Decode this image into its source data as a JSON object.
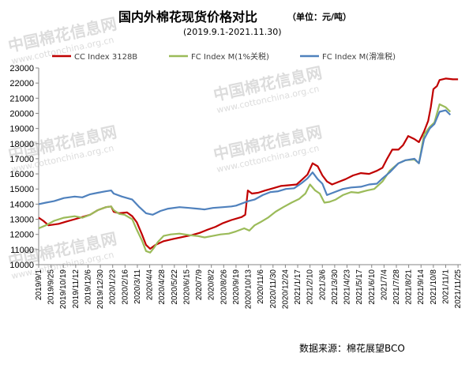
{
  "header": {
    "title": "国内外棉花现货价格对比",
    "unit": "（单位：元/吨）",
    "subtitle": "(2019.9.1-2021.11.30)"
  },
  "footer": {
    "source": "数据来源：棉花展望BCO"
  },
  "watermark": {
    "text": "中国棉花信息网",
    "url": "www.cottonchina.org.cn"
  },
  "chart_data": {
    "type": "line",
    "ylim": [
      10000,
      23000
    ],
    "yticks": [
      10000,
      11000,
      12000,
      13000,
      14000,
      15000,
      16000,
      17000,
      18000,
      19000,
      20000,
      21000,
      22000,
      23000
    ],
    "ytick_labels": [
      "10000",
      "11000",
      "12000",
      "13000",
      "14000",
      "15000",
      "16000",
      "17000",
      "18000",
      "19000",
      "20000",
      "21000",
      "22000",
      "23000"
    ],
    "xlim": [
      "2019-09-01",
      "2021-12-01"
    ],
    "xticks": [
      "2019/9/1",
      "2019/9/25",
      "2019/10/19",
      "2019/11/12",
      "2019/12/6",
      "2019/12/30",
      "2020/1/23",
      "2020/2/16",
      "2020/3/11",
      "2020/4/4",
      "2020/4/28",
      "2020/5/22",
      "2020/6/15",
      "2020/7/9",
      "2020/8/2",
      "2020/8/26",
      "2020/9/19",
      "2020/10/13",
      "2020/11/6",
      "2020/11/30",
      "2020/12/24",
      "2021/1/17",
      "2021/2/10",
      "2021/3/6",
      "2021/3/30",
      "2021/4/23",
      "2021/5/17",
      "2021/6/10",
      "2021/7/4",
      "2021/7/28",
      "2021/8/21",
      "2021/9/14",
      "2021/10/8",
      "2021/11/1",
      "2021/11/25"
    ],
    "legend_position": "top",
    "grid": false,
    "series": [
      {
        "name": "CC Index 3128B",
        "color": "#c00000",
        "points": [
          [
            "2019-09-01",
            13100
          ],
          [
            "2019-09-10",
            12900
          ],
          [
            "2019-09-20",
            12600
          ],
          [
            "2019-10-10",
            12700
          ],
          [
            "2019-10-25",
            12850
          ],
          [
            "2019-11-10",
            13000
          ],
          [
            "2019-11-25",
            13150
          ],
          [
            "2019-12-10",
            13300
          ],
          [
            "2019-12-25",
            13600
          ],
          [
            "2020-01-10",
            13800
          ],
          [
            "2020-01-20",
            13850
          ],
          [
            "2020-01-25",
            13500
          ],
          [
            "2020-02-05",
            13400
          ],
          [
            "2020-02-20",
            13450
          ],
          [
            "2020-03-01",
            13200
          ],
          [
            "2020-03-10",
            12800
          ],
          [
            "2020-03-20",
            12000
          ],
          [
            "2020-03-28",
            11300
          ],
          [
            "2020-04-05",
            11050
          ],
          [
            "2020-04-15",
            11300
          ],
          [
            "2020-05-01",
            11550
          ],
          [
            "2020-05-20",
            11700
          ],
          [
            "2020-06-10",
            11850
          ],
          [
            "2020-06-25",
            11950
          ],
          [
            "2020-07-10",
            12100
          ],
          [
            "2020-07-25",
            12300
          ],
          [
            "2020-08-10",
            12500
          ],
          [
            "2020-08-25",
            12750
          ],
          [
            "2020-09-10",
            12950
          ],
          [
            "2020-09-30",
            13150
          ],
          [
            "2020-10-07",
            13300
          ],
          [
            "2020-10-12",
            14900
          ],
          [
            "2020-10-20",
            14700
          ],
          [
            "2020-11-01",
            14750
          ],
          [
            "2020-11-15",
            14900
          ],
          [
            "2020-11-30",
            15050
          ],
          [
            "2020-12-15",
            15200
          ],
          [
            "2021-01-01",
            15250
          ],
          [
            "2021-01-15",
            15300
          ],
          [
            "2021-01-25",
            15600
          ],
          [
            "2021-02-05",
            15950
          ],
          [
            "2021-02-15",
            16700
          ],
          [
            "2021-02-25",
            16500
          ],
          [
            "2021-03-06",
            15900
          ],
          [
            "2021-03-15",
            15500
          ],
          [
            "2021-03-25",
            15300
          ],
          [
            "2021-04-05",
            15450
          ],
          [
            "2021-04-20",
            15650
          ],
          [
            "2021-05-05",
            15900
          ],
          [
            "2021-05-20",
            16050
          ],
          [
            "2021-06-05",
            16000
          ],
          [
            "2021-06-20",
            16200
          ],
          [
            "2021-07-01",
            16400
          ],
          [
            "2021-07-10",
            17000
          ],
          [
            "2021-07-20",
            17600
          ],
          [
            "2021-08-01",
            17600
          ],
          [
            "2021-08-10",
            17900
          ],
          [
            "2021-08-20",
            18500
          ],
          [
            "2021-09-01",
            18300
          ],
          [
            "2021-09-10",
            18100
          ],
          [
            "2021-09-20",
            18800
          ],
          [
            "2021-09-28",
            19500
          ],
          [
            "2021-10-03",
            20400
          ],
          [
            "2021-10-08",
            21600
          ],
          [
            "2021-10-15",
            21800
          ],
          [
            "2021-10-20",
            22200
          ],
          [
            "2021-11-01",
            22300
          ],
          [
            "2021-11-15",
            22250
          ],
          [
            "2021-11-25",
            22250
          ]
        ]
      },
      {
        "name": "FC Index M(1%关税)",
        "color": "#9bbb59",
        "points": [
          [
            "2019-09-01",
            12400
          ],
          [
            "2019-09-15",
            12600
          ],
          [
            "2019-10-01",
            12900
          ],
          [
            "2019-10-20",
            13100
          ],
          [
            "2019-11-10",
            13200
          ],
          [
            "2019-11-25",
            13100
          ],
          [
            "2019-12-10",
            13300
          ],
          [
            "2019-12-25",
            13600
          ],
          [
            "2020-01-10",
            13800
          ],
          [
            "2020-01-20",
            13850
          ],
          [
            "2020-01-25",
            13600
          ],
          [
            "2020-02-05",
            13350
          ],
          [
            "2020-02-15",
            13300
          ],
          [
            "2020-03-01",
            13000
          ],
          [
            "2020-03-10",
            12300
          ],
          [
            "2020-03-20",
            11600
          ],
          [
            "2020-03-28",
            10900
          ],
          [
            "2020-04-05",
            10800
          ],
          [
            "2020-04-12",
            11100
          ],
          [
            "2020-04-20",
            11500
          ],
          [
            "2020-05-01",
            11900
          ],
          [
            "2020-05-15",
            12000
          ],
          [
            "2020-06-01",
            12050
          ],
          [
            "2020-06-20",
            11950
          ],
          [
            "2020-07-05",
            11900
          ],
          [
            "2020-07-20",
            11800
          ],
          [
            "2020-08-05",
            11900
          ],
          [
            "2020-08-20",
            12000
          ],
          [
            "2020-09-05",
            12050
          ],
          [
            "2020-09-19",
            12200
          ],
          [
            "2020-10-05",
            12400
          ],
          [
            "2020-10-15",
            12250
          ],
          [
            "2020-10-25",
            12600
          ],
          [
            "2020-11-05",
            12800
          ],
          [
            "2020-11-20",
            13100
          ],
          [
            "2020-12-05",
            13500
          ],
          [
            "2020-12-20",
            13800
          ],
          [
            "2021-01-05",
            14100
          ],
          [
            "2021-01-20",
            14350
          ],
          [
            "2021-02-01",
            14700
          ],
          [
            "2021-02-10",
            15300
          ],
          [
            "2021-02-20",
            14900
          ],
          [
            "2021-03-01",
            14700
          ],
          [
            "2021-03-10",
            14100
          ],
          [
            "2021-03-20",
            14150
          ],
          [
            "2021-04-01",
            14300
          ],
          [
            "2021-04-15",
            14600
          ],
          [
            "2021-05-01",
            14800
          ],
          [
            "2021-05-15",
            14750
          ],
          [
            "2021-06-01",
            14900
          ],
          [
            "2021-06-15",
            15000
          ],
          [
            "2021-07-01",
            15500
          ],
          [
            "2021-07-15",
            16200
          ],
          [
            "2021-08-01",
            16700
          ],
          [
            "2021-08-15",
            16900
          ],
          [
            "2021-09-01",
            16950
          ],
          [
            "2021-09-10",
            16700
          ],
          [
            "2021-09-20",
            18600
          ],
          [
            "2021-10-01",
            19100
          ],
          [
            "2021-10-10",
            19400
          ],
          [
            "2021-10-20",
            20600
          ],
          [
            "2021-11-01",
            20400
          ],
          [
            "2021-11-10",
            20100
          ]
        ]
      },
      {
        "name": "FC Index M(滑准税)",
        "color": "#4f81bd",
        "points": [
          [
            "2019-09-01",
            14000
          ],
          [
            "2019-09-15",
            14100
          ],
          [
            "2019-10-01",
            14200
          ],
          [
            "2019-10-20",
            14400
          ],
          [
            "2019-11-10",
            14500
          ],
          [
            "2019-11-25",
            14450
          ],
          [
            "2019-12-10",
            14650
          ],
          [
            "2019-12-25",
            14750
          ],
          [
            "2020-01-10",
            14850
          ],
          [
            "2020-01-20",
            14900
          ],
          [
            "2020-01-25",
            14700
          ],
          [
            "2020-02-10",
            14500
          ],
          [
            "2020-03-01",
            14300
          ],
          [
            "2020-03-15",
            13800
          ],
          [
            "2020-03-28",
            13400
          ],
          [
            "2020-04-10",
            13300
          ],
          [
            "2020-04-25",
            13550
          ],
          [
            "2020-05-10",
            13700
          ],
          [
            "2020-06-01",
            13800
          ],
          [
            "2020-06-20",
            13750
          ],
          [
            "2020-07-05",
            13700
          ],
          [
            "2020-07-20",
            13650
          ],
          [
            "2020-08-05",
            13750
          ],
          [
            "2020-08-25",
            13800
          ],
          [
            "2020-09-10",
            13850
          ],
          [
            "2020-09-19",
            13900
          ],
          [
            "2020-10-13",
            14200
          ],
          [
            "2020-10-25",
            14300
          ],
          [
            "2020-11-10",
            14600
          ],
          [
            "2020-11-25",
            14800
          ],
          [
            "2020-12-10",
            14850
          ],
          [
            "2020-12-25",
            15000
          ],
          [
            "2021-01-10",
            15050
          ],
          [
            "2021-01-25",
            15400
          ],
          [
            "2021-02-05",
            15700
          ],
          [
            "2021-02-15",
            16100
          ],
          [
            "2021-02-25",
            15650
          ],
          [
            "2021-03-06",
            15350
          ],
          [
            "2021-03-15",
            14600
          ],
          [
            "2021-03-30",
            14800
          ],
          [
            "2021-04-15",
            15000
          ],
          [
            "2021-05-01",
            15100
          ],
          [
            "2021-05-20",
            15150
          ],
          [
            "2021-06-05",
            15300
          ],
          [
            "2021-06-20",
            15350
          ],
          [
            "2021-07-01",
            15700
          ],
          [
            "2021-07-15",
            16100
          ],
          [
            "2021-08-01",
            16700
          ],
          [
            "2021-08-15",
            16900
          ],
          [
            "2021-09-01",
            17000
          ],
          [
            "2021-09-10",
            16700
          ],
          [
            "2021-09-20",
            18300
          ],
          [
            "2021-10-01",
            19000
          ],
          [
            "2021-10-10",
            19300
          ],
          [
            "2021-10-20",
            20100
          ],
          [
            "2021-11-01",
            20200
          ],
          [
            "2021-11-10",
            19900
          ]
        ]
      }
    ]
  }
}
